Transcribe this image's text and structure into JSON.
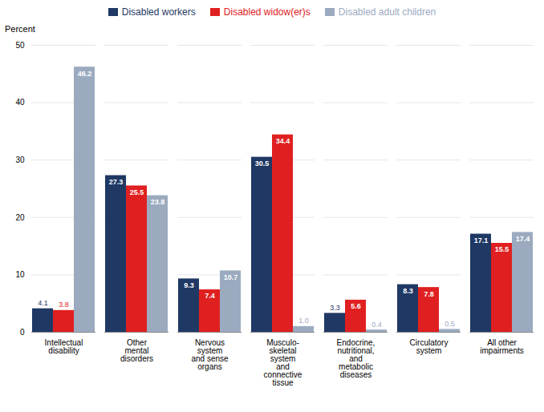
{
  "chart_data": {
    "type": "bar",
    "categories": [
      "Intellectual\ndisability",
      "Other\nmental\ndisorders",
      "Nervous\nsystem\nand sense\norgans",
      "Musculo-\nskeletal\nsystem\nand\nconnective\ntissue",
      "Endocrine,\nnutritional,\nand\nmetabolic\ndiseases",
      "Circulatory\nsystem",
      "All other\nimpairments"
    ],
    "series": [
      {
        "name": "Disabled workers",
        "color": "#1F3864",
        "values": [
          4.1,
          27.3,
          9.3,
          30.5,
          3.3,
          8.3,
          17.1
        ]
      },
      {
        "name": "Disabled widow(er)s",
        "color": "#E02020",
        "values": [
          3.8,
          25.5,
          7.4,
          34.4,
          5.6,
          7.8,
          15.5
        ]
      },
      {
        "name": "Disabled adult children",
        "color": "#9BAABF",
        "values": [
          46.2,
          23.8,
          10.7,
          1.0,
          0.4,
          0.5,
          17.4
        ],
        "value_labels": [
          "46.2",
          "23.8",
          "10.7",
          "1.0",
          "0.4",
          "0.5",
          "17.4"
        ]
      }
    ],
    "ylabel": "Percent",
    "ylim": [
      0,
      50
    ],
    "yticks": [
      0,
      10,
      20,
      30,
      40,
      50
    ],
    "grid": true,
    "legend": "top",
    "data_labels": true
  }
}
